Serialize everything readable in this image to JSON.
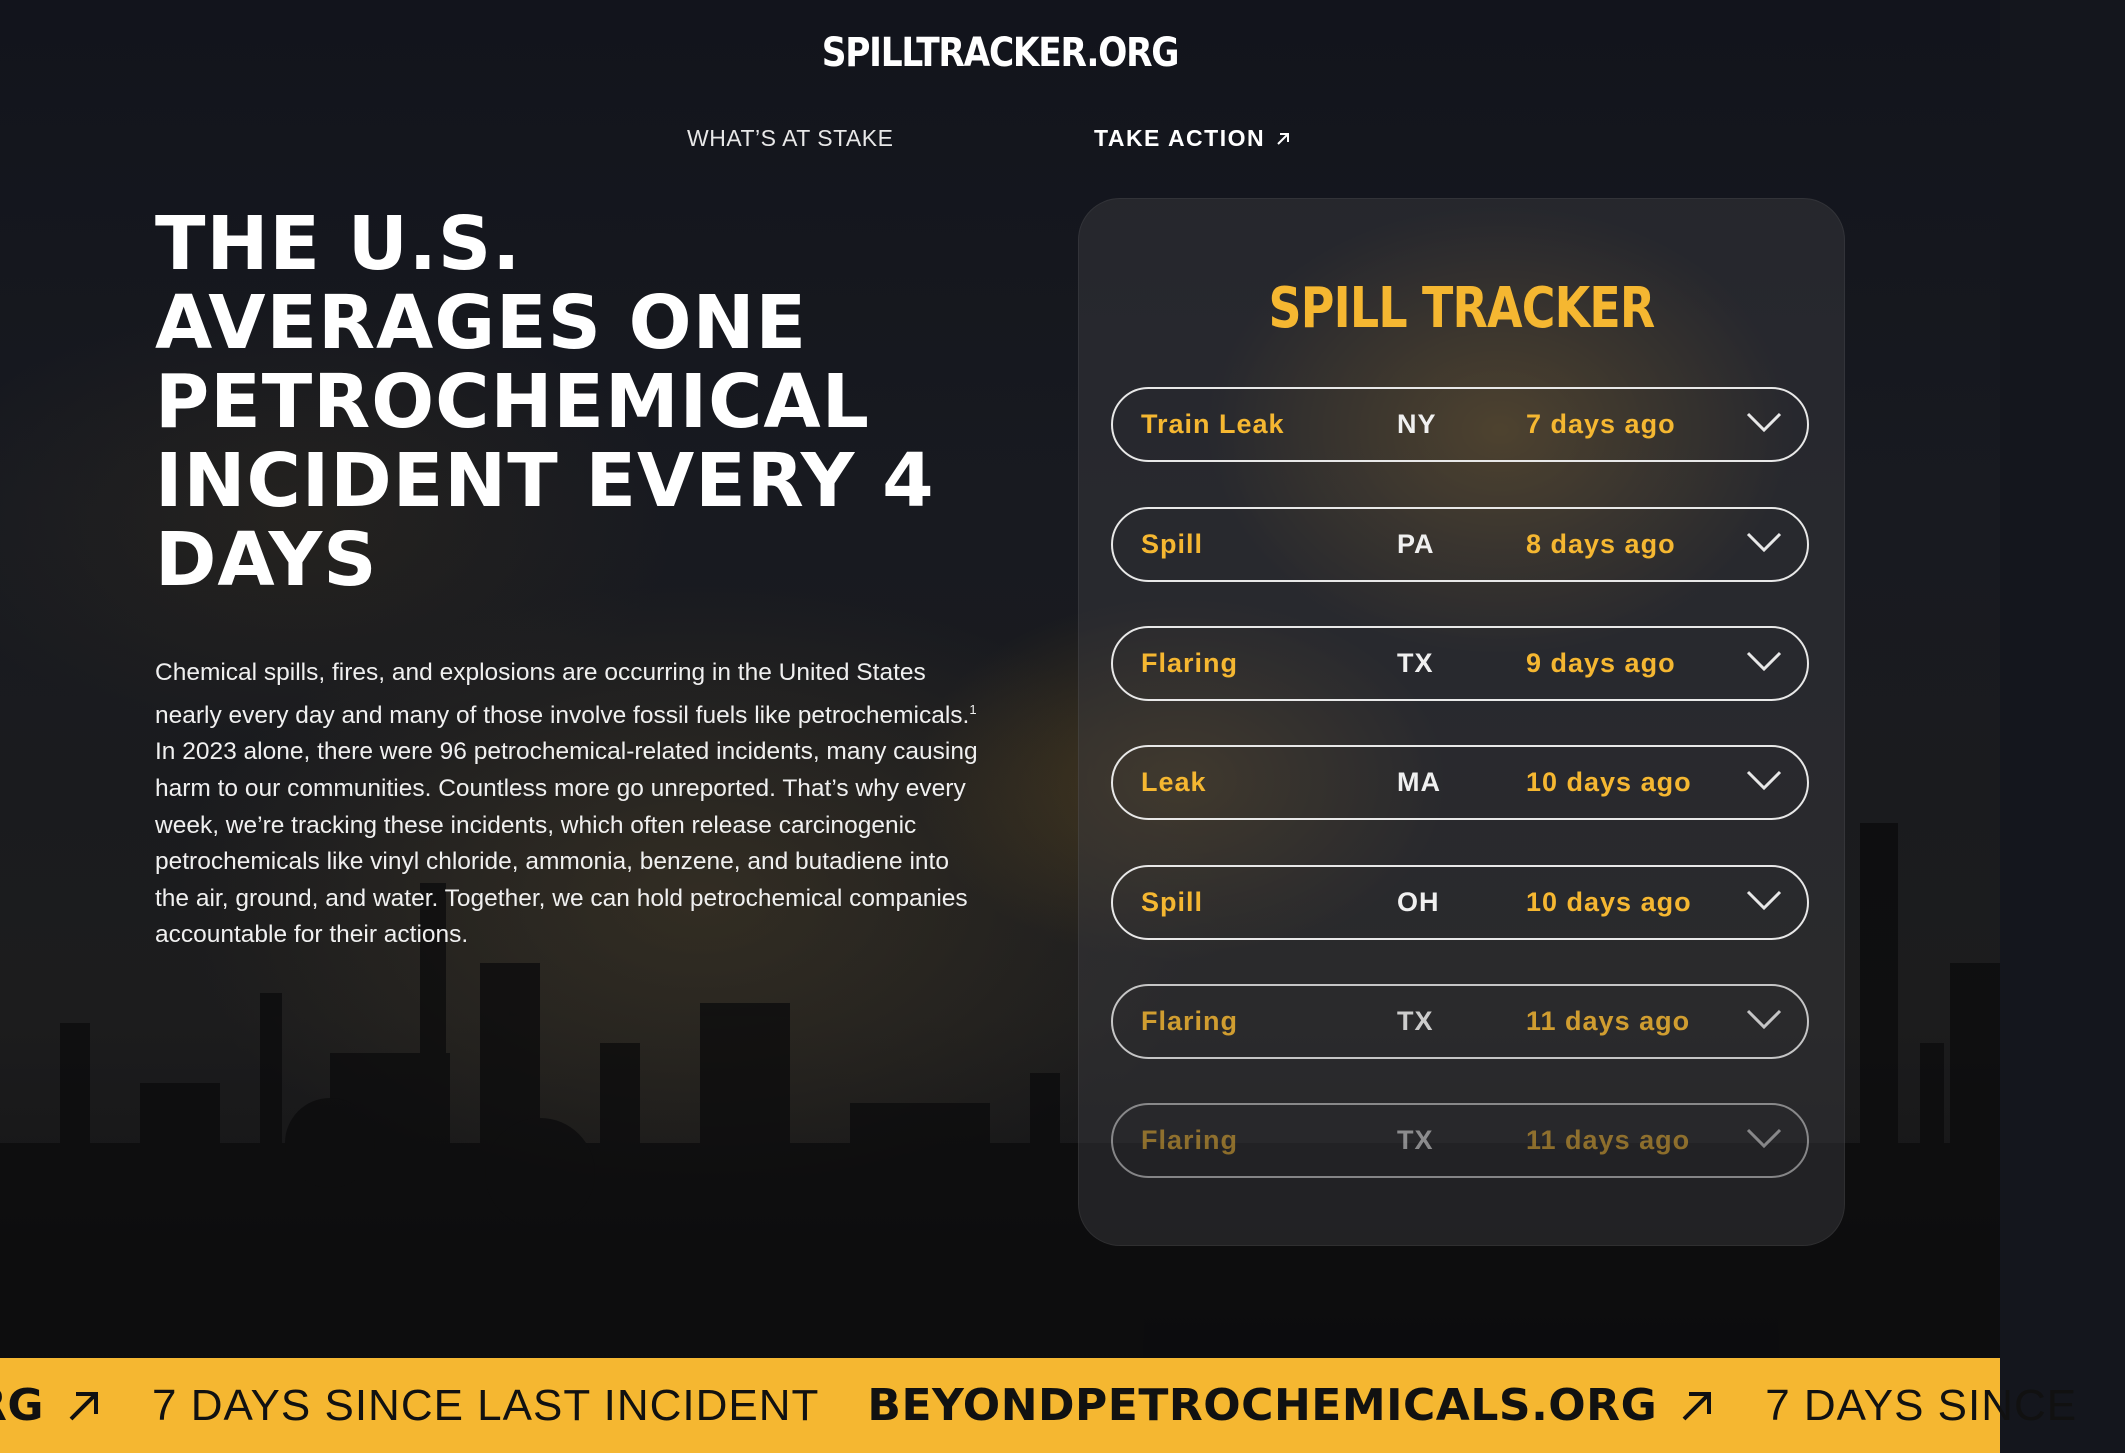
{
  "header": {
    "logo": "SPILLTRACKER.ORG",
    "nav": [
      {
        "label": "WHAT’S AT STAKE"
      },
      {
        "label": "TAKE ACTION",
        "icon": "arrow-up-right-icon"
      }
    ]
  },
  "hero": {
    "headline": "THE U.S. AVERAGES ONE PETROCHEMICAL INCIDENT EVERY 4 DAYS",
    "body_part1": "Chemical spills, fires, and explosions are occurring in the United States nearly every day and many of those involve fossil fuels like petrochemicals.",
    "footnote": "1",
    "body_part2": " In 2023 alone, there were 96 petrochemical-related incidents, many causing harm to our communities. Countless more go unreported. That’s why every week, we’re tracking these incidents, which often release carcinogenic petrochemicals like vinyl chloride, ammonia, benzene, and butadiene into the air, ground, and water. Together, we can hold petrochemical companies accountable for their actions."
  },
  "tracker": {
    "title": "SPILL TRACKER",
    "incidents": [
      {
        "type": "Train Leak",
        "state": "NY",
        "when": "7 days ago"
      },
      {
        "type": "Spill",
        "state": "PA",
        "when": "8 days ago"
      },
      {
        "type": "Flaring",
        "state": "TX",
        "when": "9 days ago"
      },
      {
        "type": "Leak",
        "state": "MA",
        "when": "10 days ago"
      },
      {
        "type": "Spill",
        "state": "OH",
        "when": "10 days ago"
      },
      {
        "type": "Flaring",
        "state": "TX",
        "when": "11 days ago"
      },
      {
        "type": "Flaring",
        "state": "TX",
        "when": "11 days ago"
      }
    ]
  },
  "ticker": {
    "site_partial": "RG",
    "days_text": "7 DAYS SINCE LAST INCIDENT",
    "site": "BEYONDPETROCHEMICALS.ORG",
    "days_partial": "7 DAYS SINCE"
  },
  "colors": {
    "accent": "#f5b731",
    "background": "#14161d",
    "text": "#ffffff"
  }
}
